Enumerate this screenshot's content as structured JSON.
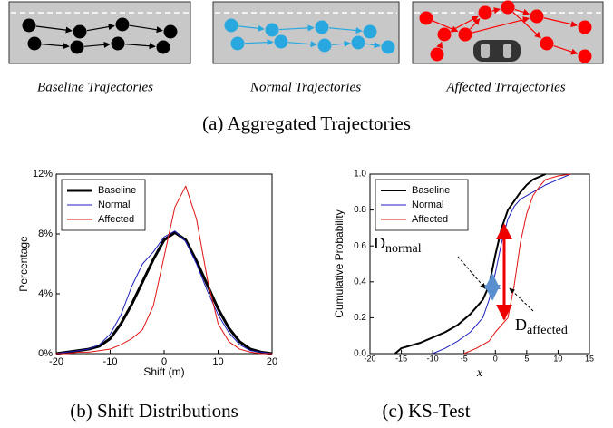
{
  "panels": [
    {
      "caption": "Baseline Trajectories"
    },
    {
      "caption": "Normal Trajectories"
    },
    {
      "caption": "Affected Trrajectories"
    }
  ],
  "figure_a_caption": "(a) Aggregated Trajectories",
  "chart_data": [
    {
      "type": "line",
      "caption": "(b) Shift Distributions",
      "xlabel": "Shift (m)",
      "ylabel": "Percentage",
      "xlim": [
        -20,
        20
      ],
      "xticks": [
        -20,
        -10,
        0,
        10,
        20
      ],
      "ylim": [
        0,
        12
      ],
      "yticks": [
        {
          "value": 0,
          "label": "0%"
        },
        {
          "value": 4,
          "label": "4%"
        },
        {
          "value": 8,
          "label": "8%"
        },
        {
          "value": 12,
          "label": "12%"
        }
      ],
      "legend": "upper left",
      "x": [
        -20,
        -18,
        -16,
        -14,
        -12,
        -10,
        -8,
        -6,
        -4,
        -2,
        0,
        2,
        4,
        6,
        8,
        10,
        12,
        14,
        16,
        18,
        20
      ],
      "series": [
        {
          "name": "Baseline",
          "color": "#000000",
          "linewidth": 3,
          "values": [
            0,
            0.1,
            0.2,
            0.3,
            0.5,
            1.0,
            2.0,
            3.3,
            4.8,
            6.3,
            7.6,
            8.1,
            7.6,
            6.2,
            4.6,
            3.0,
            1.7,
            0.8,
            0.3,
            0.1,
            0
          ]
        },
        {
          "name": "Normal",
          "color": "#1f1fbf",
          "linewidth": 1,
          "values": [
            0,
            0.1,
            0.2,
            0.3,
            0.6,
            1.3,
            2.6,
            4.5,
            6.0,
            6.8,
            7.8,
            8.2,
            7.5,
            6.0,
            4.2,
            2.6,
            1.4,
            0.6,
            0.2,
            0.1,
            0
          ]
        },
        {
          "name": "Affected",
          "color": "#e01010",
          "linewidth": 1,
          "values": [
            0,
            0,
            0.1,
            0.1,
            0.2,
            0.3,
            0.6,
            1.0,
            1.6,
            3.2,
            6.5,
            9.8,
            11.2,
            9.0,
            5.0,
            2.0,
            0.8,
            0.3,
            0.1,
            0,
            0
          ]
        }
      ]
    },
    {
      "type": "line",
      "caption": "(c) KS-Test",
      "xlabel": "x",
      "ylabel": "Cumulative Probability",
      "xlim": [
        -20,
        15
      ],
      "xticks": [
        -20,
        -15,
        -10,
        -5,
        0,
        5,
        10,
        15
      ],
      "ylim": [
        0,
        1
      ],
      "yticks": [
        {
          "value": 0,
          "label": "0.0"
        },
        {
          "value": 0.2,
          "label": "0.2"
        },
        {
          "value": 0.4,
          "label": "0.4"
        },
        {
          "value": 0.6,
          "label": "0.6"
        },
        {
          "value": 0.8,
          "label": "0.8"
        },
        {
          "value": 1,
          "label": "1.0"
        }
      ],
      "legend": "upper left",
      "series": [
        {
          "name": "Baseline",
          "color": "#000000",
          "linewidth": 2,
          "x": [
            -16,
            -15,
            -12,
            -10,
            -8,
            -6,
            -4,
            -2,
            -1,
            0,
            1,
            2,
            3,
            4,
            5,
            6,
            8
          ],
          "values": [
            0,
            0.03,
            0.06,
            0.09,
            0.12,
            0.16,
            0.22,
            0.3,
            0.38,
            0.55,
            0.7,
            0.8,
            0.85,
            0.9,
            0.94,
            0.97,
            1.0
          ]
        },
        {
          "name": "Normal",
          "color": "#1f1fbf",
          "linewidth": 1,
          "x": [
            -10,
            -8,
            -6,
            -4,
            -2,
            -1,
            0,
            1,
            2,
            3,
            4,
            6,
            8,
            10,
            12
          ],
          "values": [
            0,
            0.03,
            0.07,
            0.12,
            0.2,
            0.3,
            0.45,
            0.62,
            0.75,
            0.82,
            0.86,
            0.9,
            0.94,
            0.97,
            1.0
          ]
        },
        {
          "name": "Affected",
          "color": "#e01010",
          "linewidth": 1,
          "x": [
            -5,
            -3,
            -1,
            0,
            1,
            2,
            3,
            4,
            5,
            6,
            7,
            8,
            10,
            12
          ],
          "values": [
            0,
            0.03,
            0.07,
            0.12,
            0.16,
            0.2,
            0.38,
            0.62,
            0.78,
            0.88,
            0.93,
            0.97,
            0.99,
            1.0
          ]
        }
      ],
      "annotations": [
        {
          "text": "D",
          "sub": "normal"
        },
        {
          "text": "D",
          "sub": "affected"
        }
      ]
    }
  ]
}
